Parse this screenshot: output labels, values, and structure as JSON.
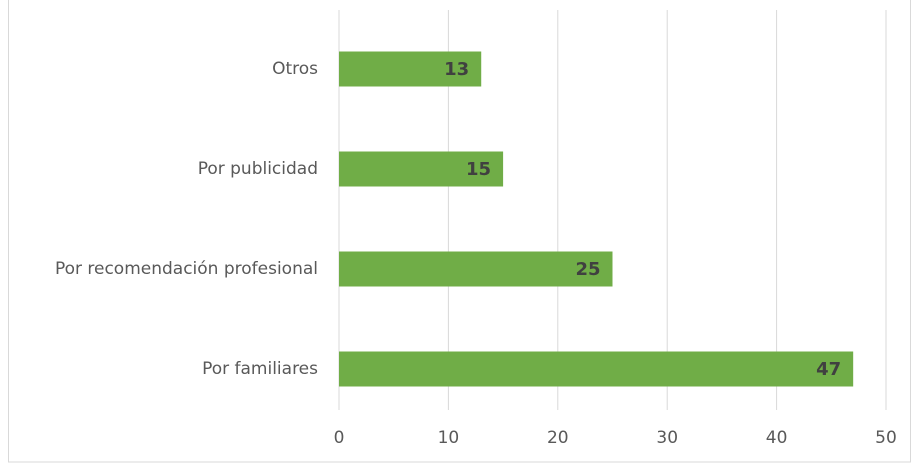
{
  "chart_data": {
    "type": "bar",
    "orientation": "horizontal",
    "categories": [
      "Otros",
      "Por publicidad",
      "Por recomendación profesional",
      "Por familiares"
    ],
    "values": [
      13,
      15,
      25,
      47
    ],
    "color": "#70ad47",
    "xlim": [
      0,
      50
    ],
    "xticks": [
      0,
      10,
      20,
      30,
      40,
      50
    ],
    "grid": true
  }
}
